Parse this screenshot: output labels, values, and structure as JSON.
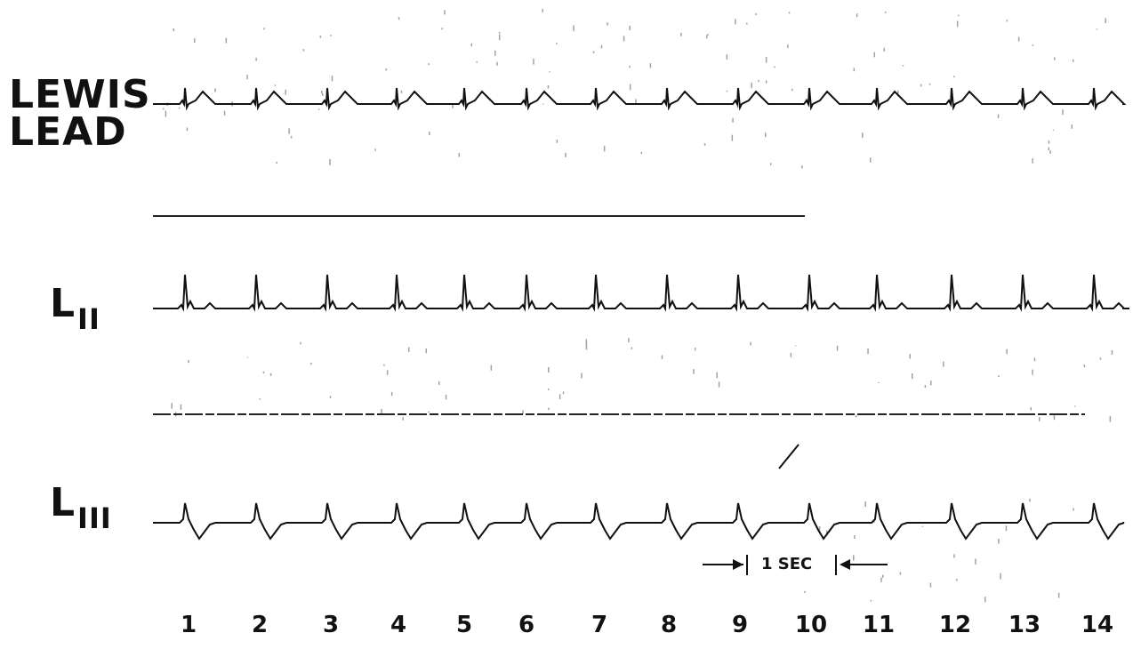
{
  "leads": [
    {
      "id": "lewis",
      "label_line1": "LEWIS",
      "label_line2": "LEAD"
    },
    {
      "id": "lii",
      "label_main": "L",
      "label_sub": "II"
    },
    {
      "id": "liii",
      "label_main": "L",
      "label_sub": "III"
    }
  ],
  "scale_marker": {
    "label": "1 SEC"
  },
  "beat_numbers": [
    "1",
    "2",
    "3",
    "4",
    "5",
    "6",
    "7",
    "8",
    "9",
    "10",
    "11",
    "12",
    "13",
    "14"
  ],
  "colors": {
    "ink": "#111111",
    "paper": "#ffffff"
  }
}
